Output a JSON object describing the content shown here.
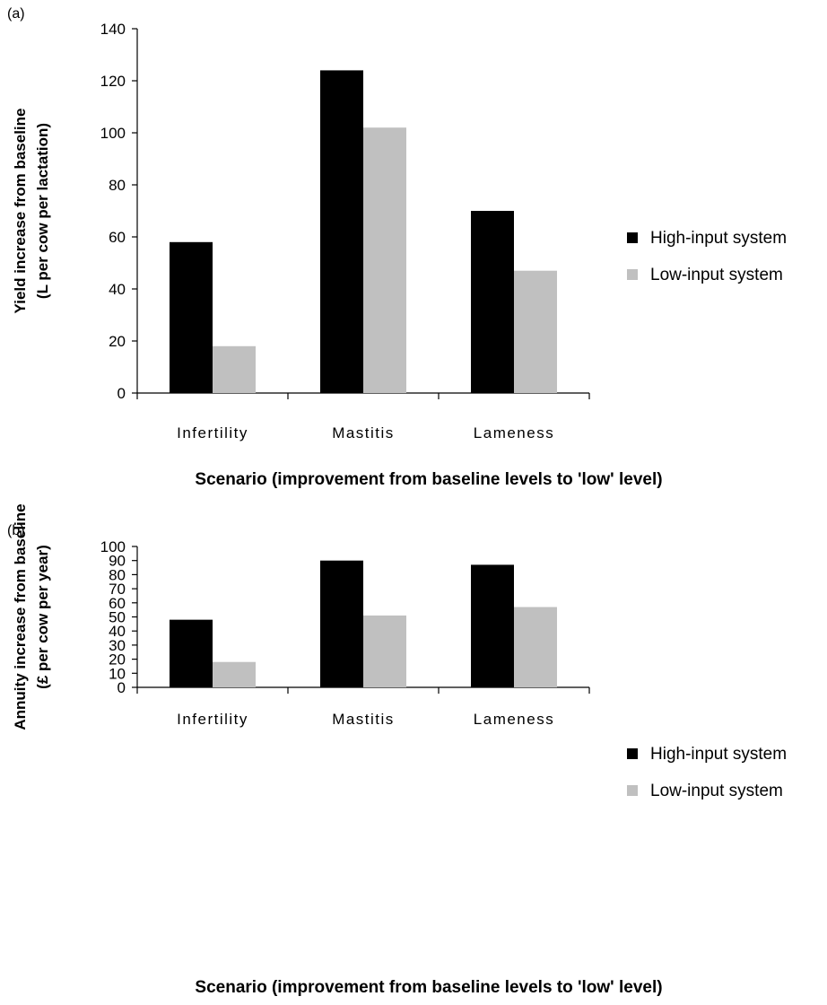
{
  "chart_data": [
    {
      "panel_label": "(a)",
      "type": "bar",
      "categories": [
        "Infertility",
        "Mastitis",
        "Lameness"
      ],
      "series": [
        {
          "name": "High-input system",
          "color": "#000000",
          "values": [
            58,
            124,
            70
          ]
        },
        {
          "name": "Low-input system",
          "color": "#c0c0c0",
          "values": [
            18,
            102,
            47
          ]
        }
      ],
      "ylabel_line1": "Yield increase from baseline",
      "ylabel_line2": "(L per cow per lactation)",
      "xlabel": "Scenario (improvement from baseline levels to 'low' level)",
      "ylim": [
        0,
        140
      ],
      "yticks": [
        0,
        20,
        40,
        60,
        80,
        100,
        120,
        140
      ],
      "legend_position": "right",
      "grid": false
    },
    {
      "panel_label": "(b)",
      "type": "bar",
      "categories": [
        "Infertility",
        "Mastitis",
        "Lameness"
      ],
      "series": [
        {
          "name": "High-input system",
          "color": "#000000",
          "values": [
            48,
            90,
            87
          ]
        },
        {
          "name": "Low-input system",
          "color": "#c0c0c0",
          "values": [
            18,
            51,
            57
          ]
        }
      ],
      "ylabel_line1": "Annuity increase from baseline",
      "ylabel_line2": "(£ per cow per year)",
      "xlabel": "Scenario (improvement from baseline levels to 'low' level)",
      "ylim": [
        0,
        100
      ],
      "yticks": [
        0,
        10,
        20,
        30,
        40,
        50,
        60,
        70,
        80,
        90,
        100
      ],
      "legend_position": "right",
      "grid": false
    }
  ]
}
